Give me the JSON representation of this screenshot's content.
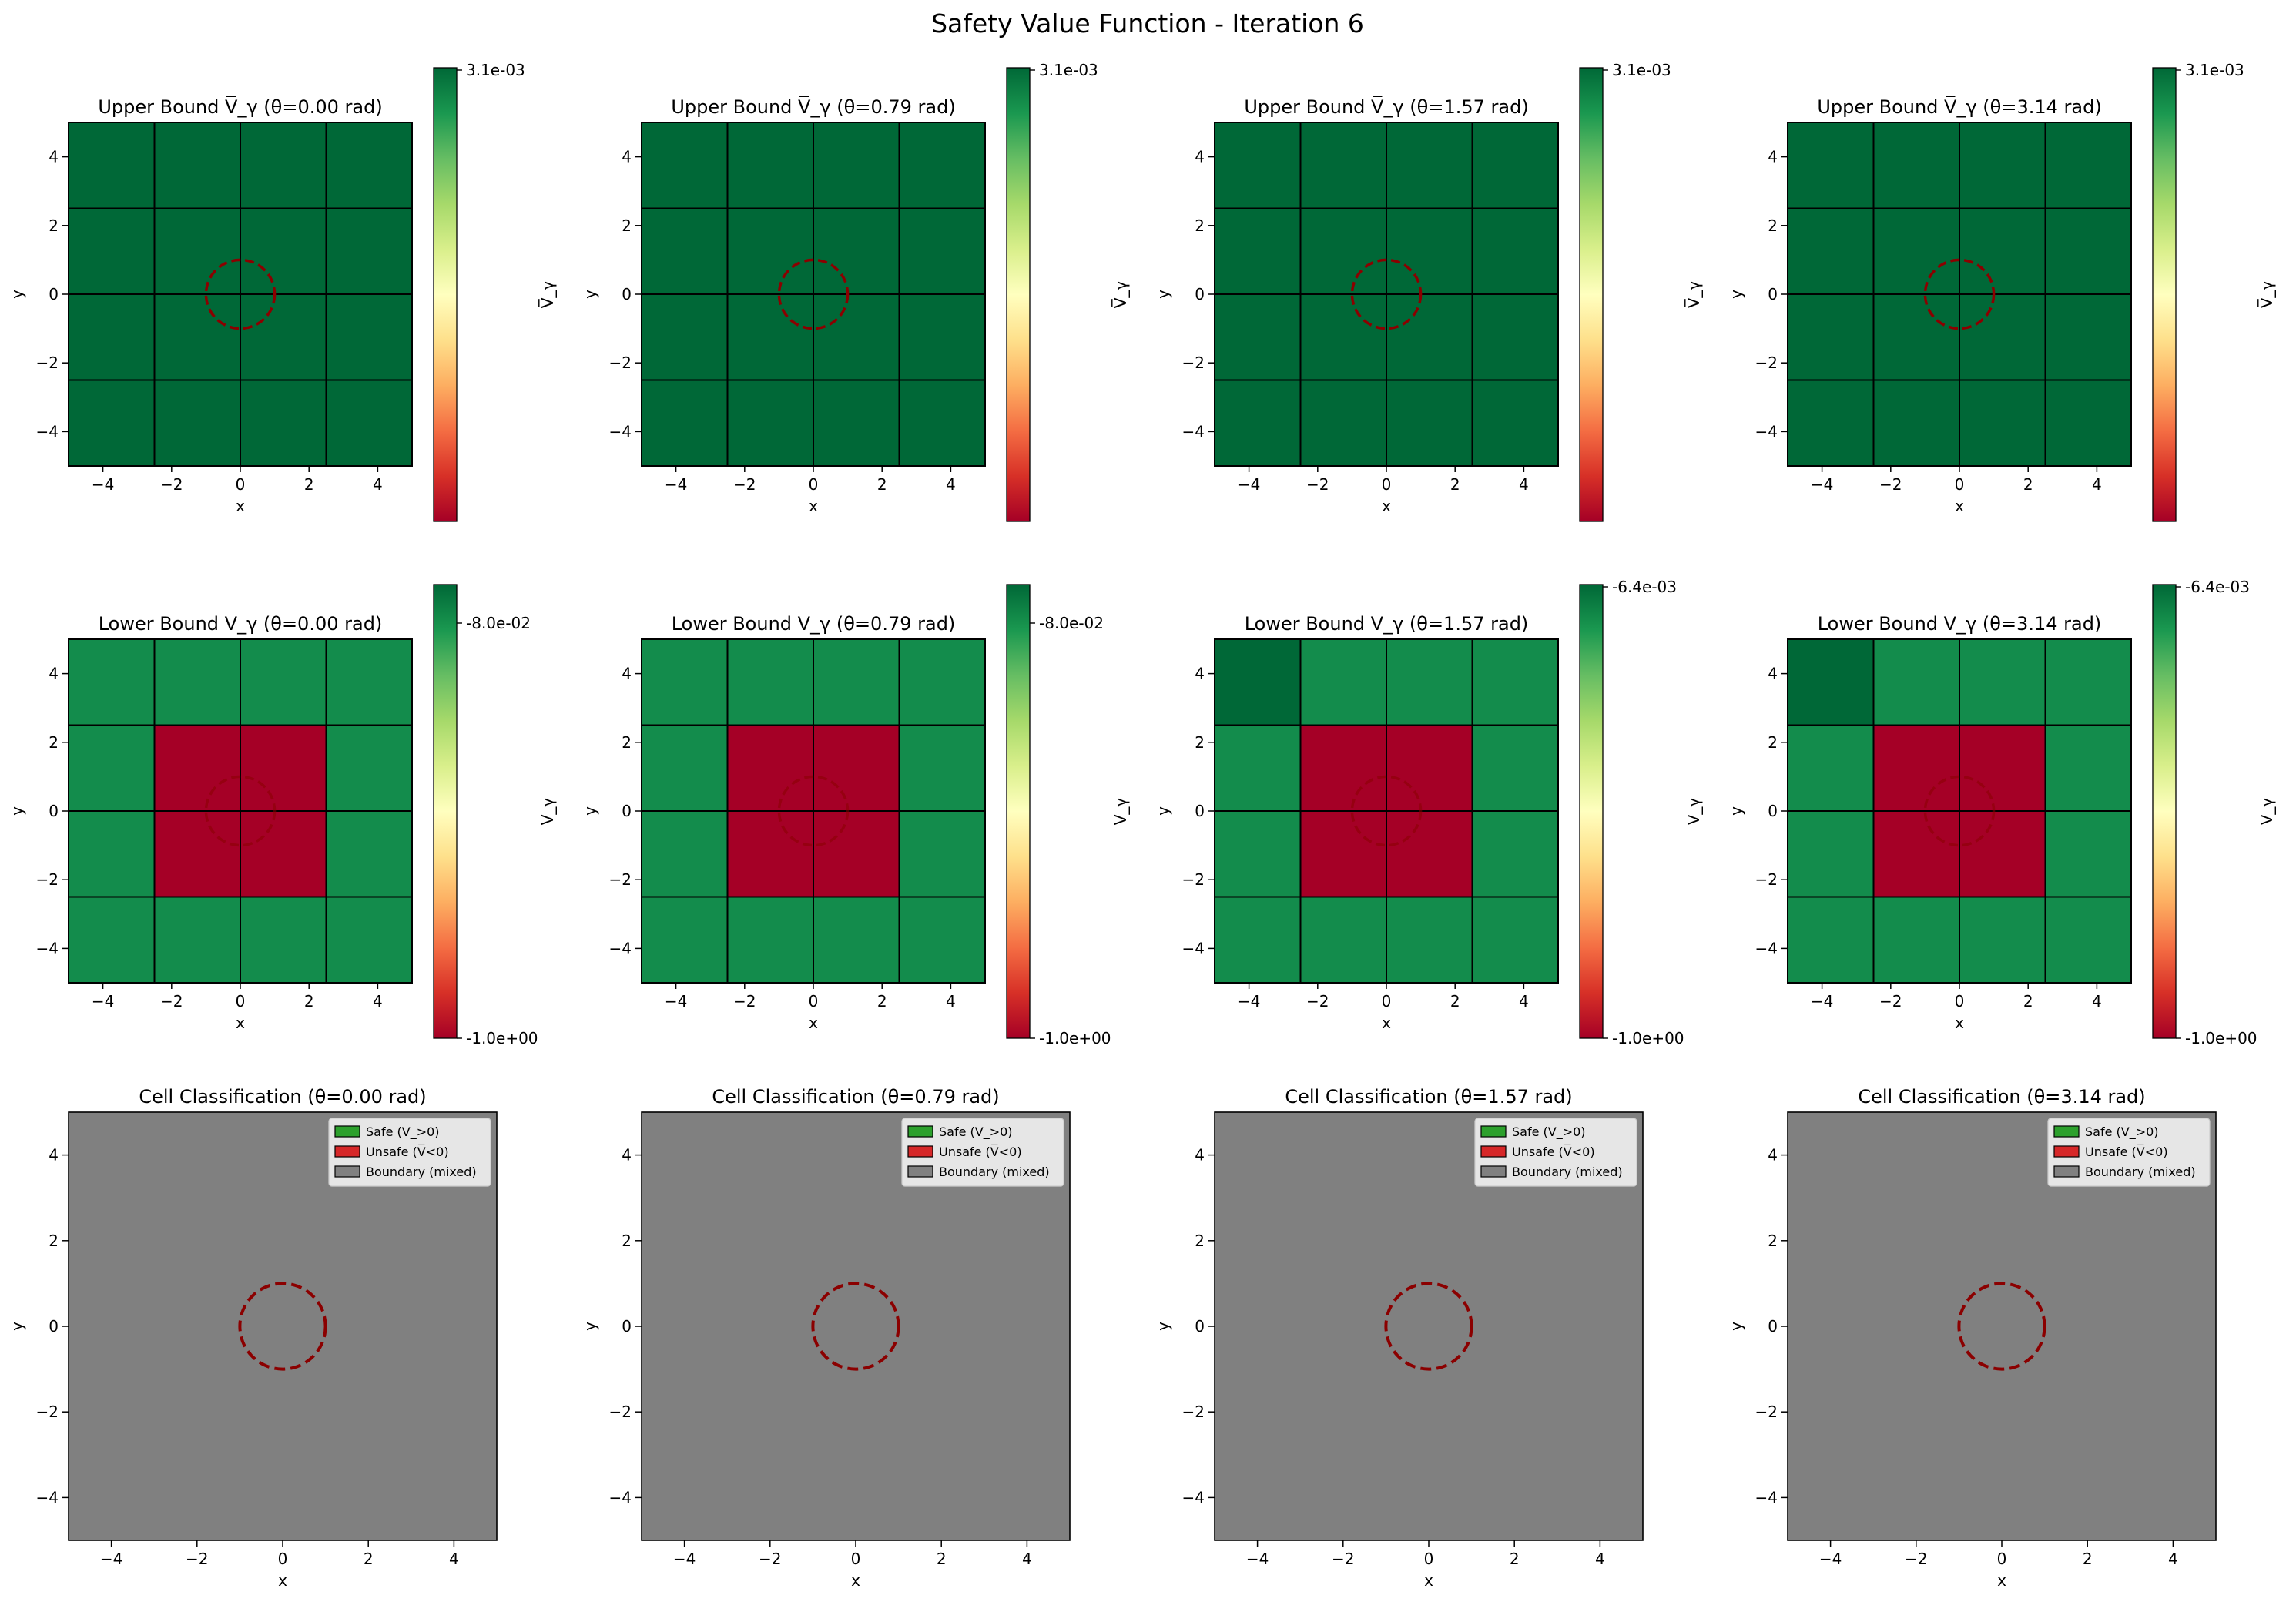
{
  "figure": {
    "title": "Safety Value Function - Iteration 6"
  },
  "colors": {
    "dark_green": "#006837",
    "mid_green": "#138c4c",
    "red": "#a50026",
    "gray": "#808080",
    "obstacle": "#8b0000",
    "legend_safe": "#2ca02c",
    "legend_unsafe": "#d62728",
    "legend_boundary": "#808080",
    "colormap": "RdYlGn"
  },
  "chart_data": [
    {
      "type": "heatmap",
      "row": "upper",
      "title": "Upper Bound V̅_γ (θ=0.00 rad)",
      "xlabel": "x",
      "ylabel": "y",
      "colorbar_label": "V̅_γ",
      "xlim": [
        -5,
        5
      ],
      "ylim": [
        -5,
        5
      ],
      "xticks": [
        -4,
        -2,
        0,
        2,
        4
      ],
      "yticks": [
        -4,
        -2,
        0,
        2,
        4
      ],
      "cell_edges": [
        -5,
        -2.5,
        0,
        2.5,
        5
      ],
      "cell_colors": [
        [
          "dark",
          "dark",
          "dark",
          "dark"
        ],
        [
          "dark",
          "dark",
          "dark",
          "dark"
        ],
        [
          "dark",
          "dark",
          "dark",
          "dark"
        ],
        [
          "dark",
          "dark",
          "dark",
          "dark"
        ]
      ],
      "colorbar_ticks": [
        "3.1e-03"
      ],
      "obstacle": {
        "center": [
          0,
          0
        ],
        "radius": 1
      }
    },
    {
      "type": "heatmap",
      "row": "upper",
      "title": "Upper Bound V̅_γ (θ=0.79 rad)",
      "xlabel": "x",
      "ylabel": "y",
      "colorbar_label": "V̅_γ",
      "xlim": [
        -5,
        5
      ],
      "ylim": [
        -5,
        5
      ],
      "xticks": [
        -4,
        -2,
        0,
        2,
        4
      ],
      "yticks": [
        -4,
        -2,
        0,
        2,
        4
      ],
      "cell_edges": [
        -5,
        -2.5,
        0,
        2.5,
        5
      ],
      "cell_colors": [
        [
          "dark",
          "dark",
          "dark",
          "dark"
        ],
        [
          "dark",
          "dark",
          "dark",
          "dark"
        ],
        [
          "dark",
          "dark",
          "dark",
          "dark"
        ],
        [
          "dark",
          "dark",
          "dark",
          "dark"
        ]
      ],
      "colorbar_ticks": [
        "3.1e-03"
      ],
      "obstacle": {
        "center": [
          0,
          0
        ],
        "radius": 1
      }
    },
    {
      "type": "heatmap",
      "row": "upper",
      "title": "Upper Bound V̅_γ (θ=1.57 rad)",
      "xlabel": "x",
      "ylabel": "y",
      "colorbar_label": "V̅_γ",
      "xlim": [
        -5,
        5
      ],
      "ylim": [
        -5,
        5
      ],
      "xticks": [
        -4,
        -2,
        0,
        2,
        4
      ],
      "yticks": [
        -4,
        -2,
        0,
        2,
        4
      ],
      "cell_edges": [
        -5,
        -2.5,
        0,
        2.5,
        5
      ],
      "cell_colors": [
        [
          "dark",
          "dark",
          "dark",
          "dark"
        ],
        [
          "dark",
          "dark",
          "dark",
          "dark"
        ],
        [
          "dark",
          "dark",
          "dark",
          "dark"
        ],
        [
          "dark",
          "dark",
          "dark",
          "dark"
        ]
      ],
      "colorbar_ticks": [
        "3.1e-03"
      ],
      "obstacle": {
        "center": [
          0,
          0
        ],
        "radius": 1
      }
    },
    {
      "type": "heatmap",
      "row": "upper",
      "title": "Upper Bound V̅_γ (θ=3.14 rad)",
      "xlabel": "x",
      "ylabel": "y",
      "colorbar_label": "V̅_γ",
      "xlim": [
        -5,
        5
      ],
      "ylim": [
        -5,
        5
      ],
      "xticks": [
        -4,
        -2,
        0,
        2,
        4
      ],
      "yticks": [
        -4,
        -2,
        0,
        2,
        4
      ],
      "cell_edges": [
        -5,
        -2.5,
        0,
        2.5,
        5
      ],
      "cell_colors": [
        [
          "dark",
          "dark",
          "dark",
          "dark"
        ],
        [
          "dark",
          "dark",
          "dark",
          "dark"
        ],
        [
          "dark",
          "dark",
          "dark",
          "dark"
        ],
        [
          "dark",
          "dark",
          "dark",
          "dark"
        ]
      ],
      "colorbar_ticks": [
        "3.1e-03"
      ],
      "obstacle": {
        "center": [
          0,
          0
        ],
        "radius": 1
      }
    },
    {
      "type": "heatmap",
      "row": "lower",
      "title": "Lower Bound V_γ (θ=0.00 rad)",
      "xlabel": "x",
      "ylabel": "y",
      "colorbar_label": "V_γ",
      "xlim": [
        -5,
        5
      ],
      "ylim": [
        -5,
        5
      ],
      "xticks": [
        -4,
        -2,
        0,
        2,
        4
      ],
      "yticks": [
        -4,
        -2,
        0,
        2,
        4
      ],
      "cell_edges": [
        -5,
        -2.5,
        0,
        2.5,
        5
      ],
      "cell_colors": [
        [
          "mid",
          "mid",
          "mid",
          "mid"
        ],
        [
          "mid",
          "red",
          "red",
          "mid"
        ],
        [
          "mid",
          "red",
          "red",
          "mid"
        ],
        [
          "mid",
          "mid",
          "mid",
          "mid"
        ]
      ],
      "colorbar_ticks": [
        "-8.0e-02",
        "-1.0e+00"
      ],
      "obstacle": {
        "center": [
          0,
          0
        ],
        "radius": 1
      }
    },
    {
      "type": "heatmap",
      "row": "lower",
      "title": "Lower Bound V_γ (θ=0.79 rad)",
      "xlabel": "x",
      "ylabel": "y",
      "colorbar_label": "V_γ",
      "xlim": [
        -5,
        5
      ],
      "ylim": [
        -5,
        5
      ],
      "xticks": [
        -4,
        -2,
        0,
        2,
        4
      ],
      "yticks": [
        -4,
        -2,
        0,
        2,
        4
      ],
      "cell_edges": [
        -5,
        -2.5,
        0,
        2.5,
        5
      ],
      "cell_colors": [
        [
          "mid",
          "mid",
          "mid",
          "mid"
        ],
        [
          "mid",
          "red",
          "red",
          "mid"
        ],
        [
          "mid",
          "red",
          "red",
          "mid"
        ],
        [
          "mid",
          "mid",
          "mid",
          "mid"
        ]
      ],
      "colorbar_ticks": [
        "-8.0e-02",
        "-1.0e+00"
      ],
      "obstacle": {
        "center": [
          0,
          0
        ],
        "radius": 1
      }
    },
    {
      "type": "heatmap",
      "row": "lower",
      "title": "Lower Bound V_γ (θ=1.57 rad)",
      "xlabel": "x",
      "ylabel": "y",
      "colorbar_label": "V_γ",
      "xlim": [
        -5,
        5
      ],
      "ylim": [
        -5,
        5
      ],
      "xticks": [
        -4,
        -2,
        0,
        2,
        4
      ],
      "yticks": [
        -4,
        -2,
        0,
        2,
        4
      ],
      "cell_edges": [
        -5,
        -2.5,
        0,
        2.5,
        5
      ],
      "cell_colors": [
        [
          "dark",
          "mid",
          "mid",
          "mid"
        ],
        [
          "mid",
          "red",
          "red",
          "mid"
        ],
        [
          "mid",
          "red",
          "red",
          "mid"
        ],
        [
          "mid",
          "mid",
          "mid",
          "mid"
        ]
      ],
      "colorbar_ticks": [
        "-6.4e-03",
        "-1.0e+00"
      ],
      "obstacle": {
        "center": [
          0,
          0
        ],
        "radius": 1
      }
    },
    {
      "type": "heatmap",
      "row": "lower",
      "title": "Lower Bound V_γ (θ=3.14 rad)",
      "xlabel": "x",
      "ylabel": "y",
      "colorbar_label": "V_γ",
      "xlim": [
        -5,
        5
      ],
      "ylim": [
        -5,
        5
      ],
      "xticks": [
        -4,
        -2,
        0,
        2,
        4
      ],
      "yticks": [
        -4,
        -2,
        0,
        2,
        4
      ],
      "cell_edges": [
        -5,
        -2.5,
        0,
        2.5,
        5
      ],
      "cell_colors": [
        [
          "dark",
          "mid",
          "mid",
          "mid"
        ],
        [
          "mid",
          "red",
          "red",
          "mid"
        ],
        [
          "mid",
          "red",
          "red",
          "mid"
        ],
        [
          "mid",
          "mid",
          "mid",
          "mid"
        ]
      ],
      "colorbar_ticks": [
        "-6.4e-03",
        "-1.0e+00"
      ],
      "obstacle": {
        "center": [
          0,
          0
        ],
        "radius": 1
      }
    },
    {
      "type": "heatmap",
      "row": "class",
      "title": "Cell Classification (θ=0.00 rad)",
      "xlabel": "x",
      "ylabel": "y",
      "xlim": [
        -5,
        5
      ],
      "ylim": [
        -5,
        5
      ],
      "xticks": [
        -4,
        -2,
        0,
        2,
        4
      ],
      "yticks": [
        -4,
        -2,
        0,
        2,
        4
      ],
      "fill": "Boundary (mixed)",
      "legend": [
        "Safe (V_>0)",
        "Unsafe (V̅<0)",
        "Boundary (mixed)"
      ],
      "legend_position": "upper-right",
      "obstacle": {
        "center": [
          0,
          0
        ],
        "radius": 1
      }
    },
    {
      "type": "heatmap",
      "row": "class",
      "title": "Cell Classification (θ=0.79 rad)",
      "xlabel": "x",
      "ylabel": "y",
      "xlim": [
        -5,
        5
      ],
      "ylim": [
        -5,
        5
      ],
      "xticks": [
        -4,
        -2,
        0,
        2,
        4
      ],
      "yticks": [
        -4,
        -2,
        0,
        2,
        4
      ],
      "fill": "Boundary (mixed)",
      "legend": [
        "Safe (V_>0)",
        "Unsafe (V̅<0)",
        "Boundary (mixed)"
      ],
      "legend_position": "upper-right",
      "obstacle": {
        "center": [
          0,
          0
        ],
        "radius": 1
      }
    },
    {
      "type": "heatmap",
      "row": "class",
      "title": "Cell Classification (θ=1.57 rad)",
      "xlabel": "x",
      "ylabel": "y",
      "xlim": [
        -5,
        5
      ],
      "ylim": [
        -5,
        5
      ],
      "xticks": [
        -4,
        -2,
        0,
        2,
        4
      ],
      "yticks": [
        -4,
        -2,
        0,
        2,
        4
      ],
      "fill": "Boundary (mixed)",
      "legend": [
        "Safe (V_>0)",
        "Unsafe (V̅<0)",
        "Boundary (mixed)"
      ],
      "legend_position": "upper-right",
      "obstacle": {
        "center": [
          0,
          0
        ],
        "radius": 1
      }
    },
    {
      "type": "heatmap",
      "row": "class",
      "title": "Cell Classification (θ=3.14 rad)",
      "xlabel": "x",
      "ylabel": "y",
      "xlim": [
        -5,
        5
      ],
      "ylim": [
        -5,
        5
      ],
      "xticks": [
        -4,
        -2,
        0,
        2,
        4
      ],
      "yticks": [
        -4,
        -2,
        0,
        2,
        4
      ],
      "fill": "Boundary (mixed)",
      "legend": [
        "Safe (V_>0)",
        "Unsafe (V̅<0)",
        "Boundary (mixed)"
      ],
      "legend_position": "upper-right",
      "obstacle": {
        "center": [
          0,
          0
        ],
        "radius": 1
      }
    }
  ]
}
